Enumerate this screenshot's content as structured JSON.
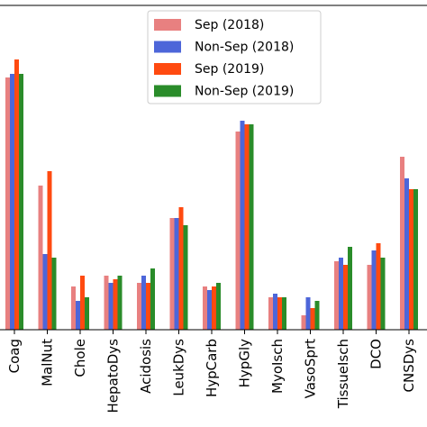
{
  "chart_data": {
    "type": "bar",
    "categories": [
      "Coag",
      "MalNut",
      "Chole",
      "HepatoDys",
      "Acidosis",
      "LeukDys",
      "HypCarb",
      "HypGly",
      "MyoIsch",
      "VasoSprt",
      "TissueIsch",
      "DCO",
      "CNSDys"
    ],
    "series": [
      {
        "name": "Sep (2018)",
        "color": "#e88080",
        "values": [
          0.7,
          0.4,
          0.12,
          0.15,
          0.13,
          0.31,
          0.12,
          0.55,
          0.09,
          0.04,
          0.19,
          0.18,
          0.48
        ]
      },
      {
        "name": "Non-Sep (2018)",
        "color": "#4d66d9",
        "values": [
          0.71,
          0.21,
          0.08,
          0.13,
          0.15,
          0.31,
          0.11,
          0.58,
          0.1,
          0.09,
          0.2,
          0.22,
          0.42
        ]
      },
      {
        "name": "Sep (2019)",
        "color": "#ff4a10",
        "values": [
          0.75,
          0.44,
          0.15,
          0.14,
          0.13,
          0.34,
          0.12,
          0.57,
          0.09,
          0.06,
          0.18,
          0.24,
          0.39
        ]
      },
      {
        "name": "Non-Sep (2019)",
        "color": "#2a8c2a",
        "values": [
          0.71,
          0.2,
          0.09,
          0.15,
          0.17,
          0.29,
          0.13,
          0.57,
          0.09,
          0.08,
          0.23,
          0.2,
          0.39
        ]
      }
    ],
    "ylim": [
      0,
      0.9
    ],
    "legend_position": "top-center",
    "grid": false
  }
}
